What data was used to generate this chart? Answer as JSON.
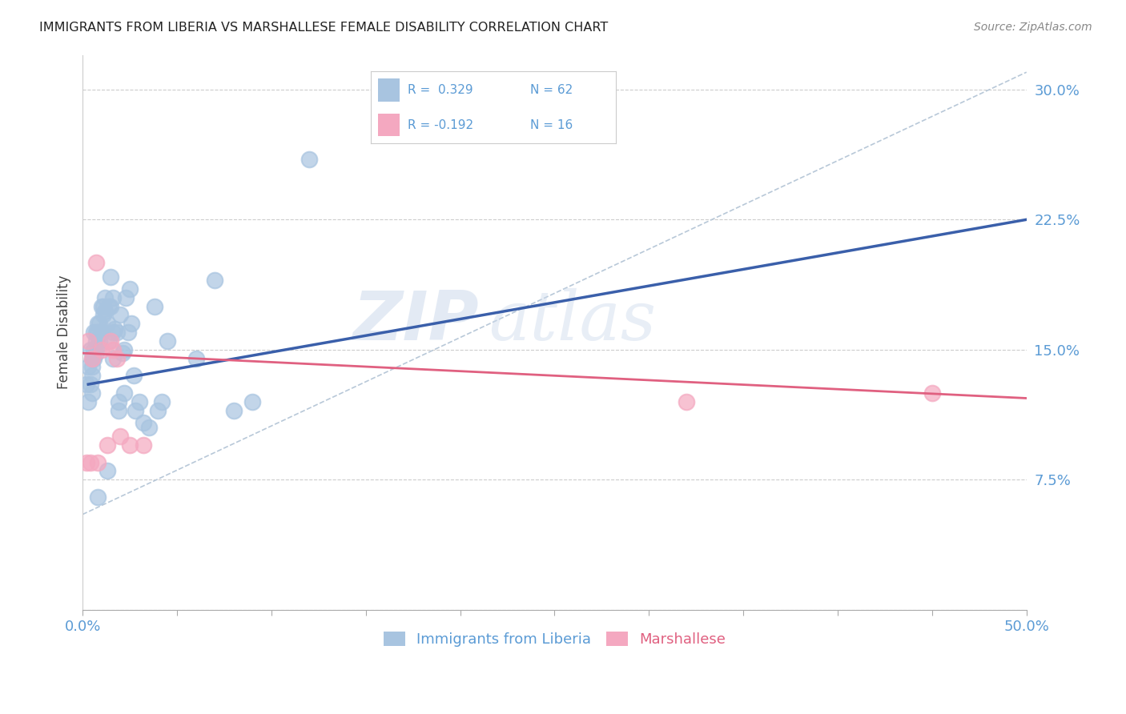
{
  "title": "IMMIGRANTS FROM LIBERIA VS MARSHALLESE FEMALE DISABILITY CORRELATION CHART",
  "source": "Source: ZipAtlas.com",
  "ylabel": "Female Disability",
  "xlim": [
    0.0,
    0.5
  ],
  "ylim": [
    0.0,
    0.32
  ],
  "xticks": [
    0.0,
    0.05,
    0.1,
    0.15,
    0.2,
    0.25,
    0.3,
    0.35,
    0.4,
    0.45,
    0.5
  ],
  "yticks": [
    0.0,
    0.075,
    0.15,
    0.225,
    0.3
  ],
  "yticklabels": [
    "",
    "7.5%",
    "15.0%",
    "22.5%",
    "30.0%"
  ],
  "blue_color": "#a8c4e0",
  "pink_color": "#f4a8c0",
  "blue_line_color": "#3a5faa",
  "pink_line_color": "#e06080",
  "dash_line_color": "#b8c8d8",
  "watermark_zip": "ZIP",
  "watermark_atlas": "atlas",
  "blue_scatter_x": [
    0.002,
    0.003,
    0.003,
    0.004,
    0.004,
    0.005,
    0.005,
    0.005,
    0.005,
    0.006,
    0.006,
    0.006,
    0.007,
    0.007,
    0.007,
    0.008,
    0.008,
    0.008,
    0.009,
    0.009,
    0.01,
    0.01,
    0.011,
    0.011,
    0.012,
    0.012,
    0.013,
    0.014,
    0.014,
    0.015,
    0.015,
    0.016,
    0.016,
    0.017,
    0.018,
    0.019,
    0.02,
    0.021,
    0.022,
    0.023,
    0.024,
    0.025,
    0.027,
    0.028,
    0.03,
    0.032,
    0.035,
    0.038,
    0.04,
    0.042,
    0.06,
    0.07,
    0.08,
    0.09,
    0.12,
    0.045,
    0.016,
    0.019,
    0.022,
    0.026,
    0.013,
    0.008
  ],
  "blue_scatter_y": [
    0.13,
    0.12,
    0.14,
    0.15,
    0.13,
    0.145,
    0.135,
    0.125,
    0.14,
    0.15,
    0.145,
    0.16,
    0.155,
    0.148,
    0.16,
    0.16,
    0.152,
    0.165,
    0.155,
    0.165,
    0.175,
    0.16,
    0.17,
    0.175,
    0.18,
    0.172,
    0.165,
    0.175,
    0.155,
    0.192,
    0.175,
    0.18,
    0.16,
    0.162,
    0.16,
    0.12,
    0.17,
    0.148,
    0.125,
    0.18,
    0.16,
    0.185,
    0.135,
    0.115,
    0.12,
    0.108,
    0.105,
    0.175,
    0.115,
    0.12,
    0.145,
    0.19,
    0.115,
    0.12,
    0.26,
    0.155,
    0.145,
    0.115,
    0.15,
    0.165,
    0.08,
    0.065
  ],
  "pink_scatter_x": [
    0.002,
    0.003,
    0.004,
    0.005,
    0.007,
    0.008,
    0.01,
    0.013,
    0.015,
    0.016,
    0.018,
    0.02,
    0.025,
    0.032,
    0.32,
    0.45
  ],
  "pink_scatter_y": [
    0.085,
    0.155,
    0.085,
    0.145,
    0.2,
    0.085,
    0.15,
    0.095,
    0.155,
    0.15,
    0.145,
    0.1,
    0.095,
    0.095,
    0.12,
    0.125
  ],
  "blue_line_x": [
    0.003,
    0.5
  ],
  "blue_line_y": [
    0.13,
    0.225
  ],
  "pink_line_x": [
    0.0,
    0.5
  ],
  "pink_line_y": [
    0.148,
    0.122
  ],
  "dash_line_x": [
    0.0,
    0.5
  ],
  "dash_line_y": [
    0.055,
    0.31
  ]
}
